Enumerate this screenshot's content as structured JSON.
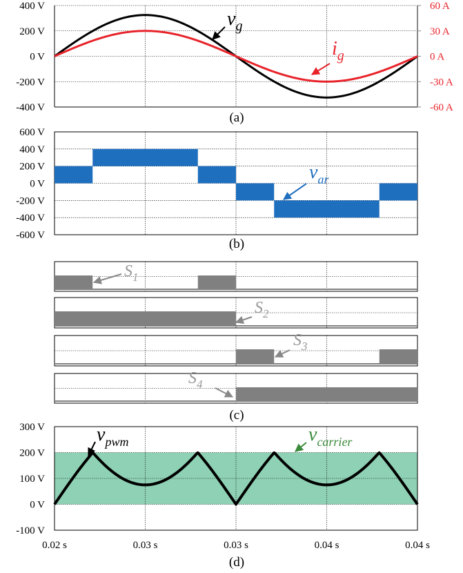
{
  "colors": {
    "vg": "#000000",
    "ig": "#e8232a",
    "var": "#1f6fbf",
    "switch": "#808080",
    "carrier": "#8fd1b5",
    "pwm": "#000000",
    "carrier_label": "#3a8a3a",
    "grid": "#000000",
    "panel_border": "#000000"
  },
  "chart_data": [
    {
      "panel": "(a)",
      "type": "line",
      "x_ticks": [],
      "left_axis": {
        "ticks": [
          "400 V",
          "200 V",
          "0 V",
          "-200 V",
          "-400 V"
        ],
        "ylim": [
          -400,
          400
        ],
        "unit": "V"
      },
      "right_axis": {
        "ticks": [
          "60 A",
          "30 A",
          "0 A",
          "-30 A",
          "-60 A"
        ],
        "ylim": [
          -60,
          60
        ],
        "unit": "A"
      },
      "xlim": [
        0.02,
        0.04
      ],
      "grid": true,
      "series": [
        {
          "name": "v_g",
          "base": "v",
          "sub": "g",
          "axis": "left",
          "shape": "sine",
          "amplitude": 325,
          "period": 0.02,
          "color_key": "vg"
        },
        {
          "name": "i_g",
          "base": "i",
          "sub": "g",
          "axis": "right",
          "shape": "sine",
          "amplitude": 30,
          "period": 0.02,
          "color_key": "ig"
        }
      ]
    },
    {
      "panel": "(b)",
      "type": "area",
      "left_axis": {
        "ticks": [
          "600 V",
          "400 V",
          "200 V",
          "0 V",
          "-200 V",
          "-400 V",
          "-600 V"
        ],
        "ylim": [
          -600,
          600
        ],
        "unit": "V"
      },
      "xlim": [
        0.02,
        0.04
      ],
      "grid": true,
      "series": [
        {
          "name": "v_ar",
          "base": "v",
          "sub": "ar",
          "color_key": "var",
          "bands": [
            {
              "x0": 0.02,
              "x1": 0.0221,
              "lo": 0,
              "hi": 200
            },
            {
              "x0": 0.0221,
              "x1": 0.0279,
              "lo": 200,
              "hi": 400
            },
            {
              "x0": 0.0279,
              "x1": 0.03,
              "lo": 0,
              "hi": 200
            },
            {
              "x0": 0.03,
              "x1": 0.0321,
              "lo": -200,
              "hi": 0
            },
            {
              "x0": 0.0321,
              "x1": 0.0379,
              "lo": -400,
              "hi": -200
            },
            {
              "x0": 0.0379,
              "x1": 0.04,
              "lo": -200,
              "hi": 0
            }
          ]
        }
      ]
    },
    {
      "panel": "(c)",
      "type": "area",
      "xlim": [
        0.02,
        0.04
      ],
      "grid": true,
      "series": [
        {
          "name": "S_1",
          "base": "S",
          "sub": "1",
          "color_key": "switch",
          "on_intervals": [
            [
              0.02,
              0.0221
            ],
            [
              0.0279,
              0.03
            ]
          ]
        },
        {
          "name": "S_2",
          "base": "S",
          "sub": "2",
          "color_key": "switch",
          "on_intervals": [
            [
              0.02,
              0.03
            ]
          ]
        },
        {
          "name": "S_3",
          "base": "S",
          "sub": "3",
          "color_key": "switch",
          "on_intervals": [
            [
              0.03,
              0.0321
            ],
            [
              0.0379,
              0.04
            ]
          ]
        },
        {
          "name": "S_4",
          "base": "S",
          "sub": "4",
          "color_key": "switch",
          "on_intervals": [
            [
              0.03,
              0.04
            ]
          ]
        }
      ]
    },
    {
      "panel": "(d)",
      "type": "line",
      "left_axis": {
        "ticks": [
          "300 V",
          "200 V",
          "100 V",
          "0 V",
          "-100 V"
        ],
        "ylim": [
          -100,
          300
        ],
        "unit": "V"
      },
      "x_ticks": [
        "0.02 s",
        "0.03 s",
        "0.03 s",
        "0.04 s",
        "0.04 s"
      ],
      "xlim": [
        0.02,
        0.04
      ],
      "grid": true,
      "series": [
        {
          "name": "v_carrier",
          "base": "v",
          "sub": "carrier",
          "color_key": "carrier",
          "band": {
            "lo": 0,
            "hi": 200
          }
        },
        {
          "name": "v_pwm",
          "base": "v",
          "sub": "pwm",
          "color_key": "pwm",
          "shape": "folded_sine",
          "peak": 200,
          "dip": 75
        }
      ]
    }
  ],
  "annotations": {
    "a": {
      "vg_base": "v",
      "vg_sub": "g",
      "ig_base": "i",
      "ig_sub": "g",
      "caption": "(a)"
    },
    "b": {
      "var_base": "v",
      "var_sub": "ar",
      "caption": "(b)"
    },
    "c": {
      "s1_base": "S",
      "s1_sub": "1",
      "s2_base": "S",
      "s2_sub": "2",
      "s3_base": "S",
      "s3_sub": "3",
      "s4_base": "S",
      "s4_sub": "4",
      "caption": "(c)"
    },
    "d": {
      "pwm_base": "v",
      "pwm_sub": "pwm",
      "carrier_base": "v",
      "carrier_sub": "carrier",
      "caption": "(d)"
    }
  }
}
